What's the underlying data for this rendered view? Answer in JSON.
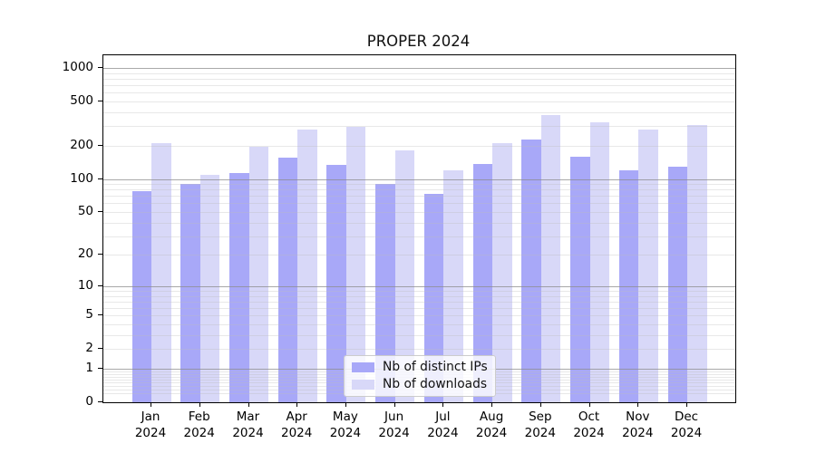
{
  "chart_data": {
    "type": "bar",
    "title": "PROPER 2024",
    "categories": [
      "Jan 2024",
      "Feb 2024",
      "Mar 2024",
      "Apr 2024",
      "May 2024",
      "Jun 2024",
      "Jul 2024",
      "Aug 2024",
      "Sep 2024",
      "Oct 2024",
      "Nov 2024",
      "Dec 2024"
    ],
    "series": [
      {
        "name": "Nb of distinct IPs",
        "color": "#a8a8f8",
        "values": [
          78,
          90,
          113,
          157,
          135,
          91,
          73,
          136,
          228,
          160,
          119,
          128
        ]
      },
      {
        "name": "Nb of downloads",
        "color": "#d8d8f8",
        "values": [
          210,
          108,
          197,
          280,
          294,
          182,
          120,
          212,
          375,
          325,
          280,
          308
        ]
      }
    ],
    "xlabel": "",
    "ylabel": "",
    "yscale": "log1p",
    "yticks": [
      0,
      1,
      2,
      5,
      10,
      20,
      50,
      100,
      200,
      500,
      1000
    ],
    "ylim": [
      0,
      1300
    ],
    "grid": "on",
    "legend_position": "lower center",
    "colors": {
      "axis": "#000000",
      "major_grid": "#8c8c8c",
      "minor_grid": "#d9d9d9",
      "background": "#ffffff"
    }
  }
}
